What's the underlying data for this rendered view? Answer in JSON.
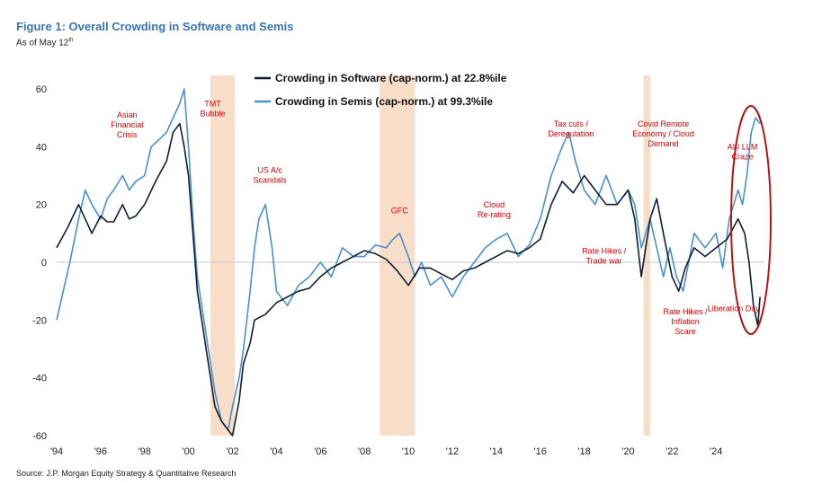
{
  "header": {
    "title": "Figure 1: Overall Crowding in Software and Semis",
    "subtitle_main": "As of May 12",
    "subtitle_sup": "th"
  },
  "footer": {
    "source": "Source: J.P. Morgan Equity Strategy & Quantitative Research"
  },
  "colors": {
    "software": "#0f1e33",
    "semis": "#4a8fd0",
    "shade": "#f8ddc9",
    "annotation": "#d40000",
    "ellipse": "#b01818",
    "zero_line": "#c8c8c8"
  },
  "chart_data": {
    "type": "line",
    "title": "Figure 1: Overall Crowding in Software and Semis",
    "xlabel": "",
    "ylabel": "",
    "xlim": [
      1994,
      2026.2
    ],
    "ylim": [
      -60,
      60
    ],
    "grid": false,
    "legend_position": "top-center",
    "x_ticks": [
      {
        "value": 1994,
        "label": "'94"
      },
      {
        "value": 1996,
        "label": "'96"
      },
      {
        "value": 1998,
        "label": "'98"
      },
      {
        "value": 2000,
        "label": "'00"
      },
      {
        "value": 2002,
        "label": "'02"
      },
      {
        "value": 2004,
        "label": "'04"
      },
      {
        "value": 2006,
        "label": "'06"
      },
      {
        "value": 2008,
        "label": "'08"
      },
      {
        "value": 2010,
        "label": "'10"
      },
      {
        "value": 2012,
        "label": "'12"
      },
      {
        "value": 2014,
        "label": "'14"
      },
      {
        "value": 2016,
        "label": "'16"
      },
      {
        "value": 2018,
        "label": "'18"
      },
      {
        "value": 2020,
        "label": "'20"
      },
      {
        "value": 2022,
        "label": "'22"
      },
      {
        "value": 2024,
        "label": "'24"
      }
    ],
    "y_ticks": [
      60,
      40,
      20,
      0,
      -20,
      -40,
      -60
    ],
    "shaded_periods": [
      {
        "start": 2001.0,
        "end": 2002.1
      },
      {
        "start": 2008.7,
        "end": 2010.3
      },
      {
        "start": 2020.7,
        "end": 2021.0
      }
    ],
    "series": [
      {
        "name": "Crowding in Software (cap-norm.) at 22.8%ile",
        "x": [
          1994.0,
          1994.5,
          1995.0,
          1995.3,
          1995.6,
          1996.0,
          1996.3,
          1996.6,
          1997.0,
          1997.3,
          1997.6,
          1998.0,
          1998.5,
          1999.0,
          1999.3,
          1999.6,
          1999.8,
          2000.0,
          2000.2,
          2000.4,
          2000.6,
          2000.8,
          2001.0,
          2001.2,
          2001.5,
          2001.8,
          2002.0,
          2002.3,
          2002.5,
          2002.8,
          2003.0,
          2003.5,
          2004.0,
          2004.5,
          2005.0,
          2005.5,
          2006.0,
          2006.5,
          2007.0,
          2007.5,
          2008.0,
          2008.5,
          2009.0,
          2009.5,
          2010.0,
          2010.5,
          2011.0,
          2011.5,
          2012.0,
          2012.5,
          2013.0,
          2013.5,
          2014.0,
          2014.5,
          2015.0,
          2015.5,
          2016.0,
          2016.5,
          2017.0,
          2017.5,
          2018.0,
          2018.5,
          2019.0,
          2019.5,
          2020.0,
          2020.3,
          2020.6,
          2020.8,
          2021.0,
          2021.3,
          2021.6,
          2022.0,
          2022.3,
          2022.6,
          2023.0,
          2023.5,
          2024.0,
          2024.5,
          2025.0,
          2025.3,
          2025.5,
          2025.7,
          2025.9,
          2026.0
        ],
        "y": [
          5,
          12,
          20,
          15,
          10,
          16,
          14,
          14,
          20,
          15,
          16,
          20,
          28,
          35,
          45,
          48,
          40,
          30,
          10,
          -10,
          -20,
          -30,
          -40,
          -50,
          -55,
          -58,
          -60,
          -48,
          -35,
          -28,
          -20,
          -18,
          -14,
          -12,
          -10,
          -9,
          -5,
          -2,
          0,
          2,
          4,
          3,
          1,
          -3,
          -8,
          -2,
          -2,
          -4,
          -6,
          -3,
          -2,
          0,
          2,
          4,
          3,
          5,
          8,
          20,
          28,
          24,
          30,
          25,
          20,
          20,
          25,
          15,
          -5,
          5,
          15,
          22,
          10,
          -5,
          -10,
          -2,
          5,
          2,
          5,
          8,
          15,
          10,
          0,
          -15,
          -22,
          -12
        ]
      },
      {
        "name": "Crowding in Semis (cap-norm.) at 99.3%ile",
        "x": [
          1994.0,
          1994.3,
          1994.6,
          1995.0,
          1995.3,
          1995.6,
          1996.0,
          1996.3,
          1996.6,
          1997.0,
          1997.3,
          1997.6,
          1998.0,
          1998.3,
          1998.6,
          1999.0,
          1999.3,
          1999.6,
          1999.8,
          2000.0,
          2000.2,
          2000.4,
          2000.6,
          2000.8,
          2001.0,
          2001.2,
          2001.5,
          2001.8,
          2002.0,
          2002.3,
          2002.5,
          2002.8,
          2003.0,
          2003.2,
          2003.5,
          2003.8,
          2004.0,
          2004.5,
          2005.0,
          2005.5,
          2006.0,
          2006.5,
          2007.0,
          2007.5,
          2008.0,
          2008.5,
          2009.0,
          2009.3,
          2009.6,
          2010.0,
          2010.3,
          2010.6,
          2011.0,
          2011.5,
          2012.0,
          2012.5,
          2013.0,
          2013.5,
          2014.0,
          2014.5,
          2015.0,
          2015.5,
          2016.0,
          2016.5,
          2017.0,
          2017.3,
          2017.6,
          2018.0,
          2018.5,
          2019.0,
          2019.5,
          2020.0,
          2020.3,
          2020.6,
          2020.8,
          2021.0,
          2021.3,
          2021.6,
          2021.9,
          2022.2,
          2022.5,
          2023.0,
          2023.5,
          2024.0,
          2024.3,
          2024.6,
          2025.0,
          2025.2,
          2025.4,
          2025.6,
          2025.8,
          2026.0
        ],
        "y": [
          -20,
          -10,
          0,
          15,
          25,
          20,
          15,
          22,
          25,
          30,
          25,
          28,
          30,
          40,
          42,
          45,
          50,
          55,
          60,
          40,
          15,
          -5,
          -15,
          -25,
          -35,
          -45,
          -55,
          -58,
          -50,
          -40,
          -30,
          -10,
          5,
          15,
          20,
          5,
          -10,
          -15,
          -8,
          -5,
          0,
          -5,
          5,
          2,
          2,
          6,
          5,
          8,
          10,
          2,
          -5,
          0,
          -8,
          -5,
          -12,
          -5,
          0,
          5,
          8,
          10,
          2,
          6,
          15,
          30,
          40,
          45,
          35,
          25,
          20,
          30,
          20,
          25,
          20,
          5,
          10,
          15,
          5,
          -5,
          5,
          -5,
          -10,
          10,
          5,
          10,
          -2,
          15,
          25,
          20,
          30,
          45,
          50,
          48
        ]
      }
    ]
  },
  "legend": {
    "software_label": "Crowding in Software (cap-norm.) at 22.8%ile",
    "semis_label": "Crowding in Semis (cap-norm.) at 99.3%ile"
  },
  "annotations": [
    {
      "lines": [
        "Asian",
        "Financial",
        "Crisis"
      ],
      "year": 1997.2,
      "value": 50
    },
    {
      "lines": [
        "TMT",
        "Bubble"
      ],
      "year": 2001.1,
      "value": 54
    },
    {
      "lines": [
        "US A/c",
        "Scandals"
      ],
      "year": 2003.7,
      "value": 31
    },
    {
      "lines": [
        "GFC"
      ],
      "year": 2009.6,
      "value": 17
    },
    {
      "lines": [
        "Cloud",
        "Re-rating"
      ],
      "year": 2013.9,
      "value": 19
    },
    {
      "lines": [
        "Tax cuts /",
        "Deregulation"
      ],
      "year": 2017.4,
      "value": 47
    },
    {
      "lines": [
        "Rate Hikes /",
        "Trade war"
      ],
      "year": 2018.9,
      "value": 3
    },
    {
      "lines": [
        "Covid Remote",
        "Economy / Cloud",
        "Demand"
      ],
      "year": 2021.6,
      "value": 47
    },
    {
      "lines": [
        "AI / LLM",
        "Craze"
      ],
      "year": 2025.2,
      "value": 39
    },
    {
      "lines": [
        "Liberation Day"
      ],
      "year": 2024.8,
      "value": -17
    },
    {
      "lines": [
        "Rate Hikes /",
        "Inflation",
        "Scare"
      ],
      "year": 2022.6,
      "value": -18
    }
  ]
}
